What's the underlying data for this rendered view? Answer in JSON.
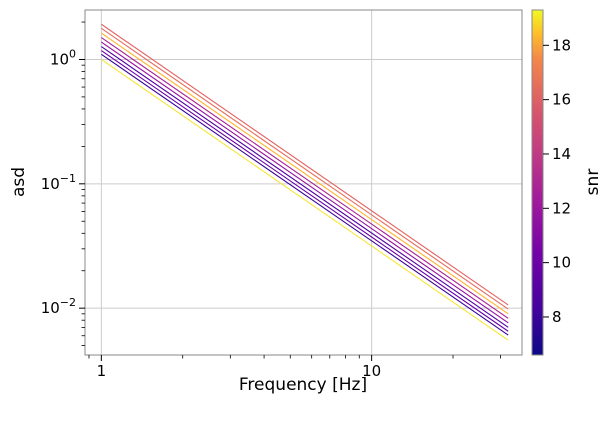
{
  "chart_data": {
    "type": "line",
    "title": "",
    "xlabel": "Frequency [Hz]",
    "ylabel": "asd",
    "xscale": "log",
    "yscale": "log",
    "xlim": [
      0.87,
      36
    ],
    "ylim": [
      0.0042,
      2.5
    ],
    "grid": true,
    "x_ticks": [
      {
        "value": 1,
        "label": "1"
      },
      {
        "value": 10,
        "label": "10"
      }
    ],
    "y_ticks": [
      {
        "value": 1,
        "label": "10",
        "exp": "0"
      },
      {
        "value": 0.1,
        "label": "10",
        "exp": "−1"
      },
      {
        "value": 0.01,
        "label": "10",
        "exp": "−2"
      }
    ],
    "x_start": 1,
    "x_end": 32,
    "slope": -1.5,
    "series": [
      {
        "snr": 19.0,
        "asd_at_1hz": 1.0,
        "color": "#f5e43a"
      },
      {
        "snr": 7.0,
        "asd_at_1hz": 1.1,
        "color": "#3a049a"
      },
      {
        "snr": 9.0,
        "asd_at_1hz": 1.18,
        "color": "#6a00a8"
      },
      {
        "snr": 8.0,
        "asd_at_1hz": 1.27,
        "color": "#5102a3"
      },
      {
        "snr": 10.5,
        "asd_at_1hz": 1.38,
        "color": "#9511a1"
      },
      {
        "snr": 11.0,
        "asd_at_1hz": 1.5,
        "color": "#a82296"
      },
      {
        "snr": 17.5,
        "asd_at_1hz": 1.63,
        "color": "#fdb32f"
      },
      {
        "snr": 14.0,
        "asd_at_1hz": 1.78,
        "color": "#e66c5c"
      },
      {
        "snr": 13.0,
        "asd_at_1hz": 1.92,
        "color": "#e16462"
      }
    ],
    "colorbar": {
      "label": "snr",
      "colormap": "plasma",
      "range": [
        6.6,
        19.3
      ],
      "ticks": [
        "8",
        "10",
        "12",
        "14",
        "16",
        "18"
      ],
      "tick_values": [
        8,
        10,
        12,
        14,
        16,
        18
      ]
    }
  }
}
